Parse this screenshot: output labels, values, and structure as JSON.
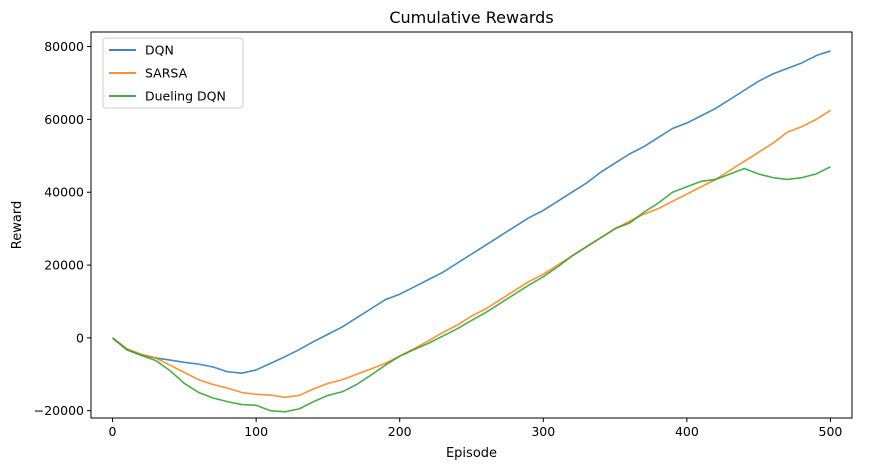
{
  "chart_data": {
    "type": "line",
    "title": "Cumulative Rewards",
    "xlabel": "Episode",
    "ylabel": "Reward",
    "xlim": [
      -15,
      515
    ],
    "ylim": [
      -22000,
      84000
    ],
    "xticks": [
      0,
      100,
      200,
      300,
      400,
      500
    ],
    "yticks": [
      -20000,
      0,
      20000,
      40000,
      60000,
      80000
    ],
    "grid": false,
    "legend_position": "top-left",
    "series": [
      {
        "name": "DQN",
        "color": "#1f77b4",
        "points": [
          [
            0,
            0
          ],
          [
            10,
            -3200
          ],
          [
            20,
            -4700
          ],
          [
            30,
            -5500
          ],
          [
            40,
            -6100
          ],
          [
            50,
            -6700
          ],
          [
            60,
            -7200
          ],
          [
            70,
            -8000
          ],
          [
            80,
            -9300
          ],
          [
            90,
            -9700
          ],
          [
            100,
            -8800
          ],
          [
            110,
            -7000
          ],
          [
            120,
            -5200
          ],
          [
            130,
            -3200
          ],
          [
            140,
            -1000
          ],
          [
            150,
            1000
          ],
          [
            160,
            3000
          ],
          [
            170,
            5500
          ],
          [
            180,
            8000
          ],
          [
            190,
            10500
          ],
          [
            200,
            12000
          ],
          [
            210,
            14000
          ],
          [
            220,
            16000
          ],
          [
            230,
            18000
          ],
          [
            240,
            20500
          ],
          [
            250,
            23000
          ],
          [
            260,
            25500
          ],
          [
            270,
            28000
          ],
          [
            280,
            30500
          ],
          [
            290,
            33000
          ],
          [
            300,
            35000
          ],
          [
            310,
            37500
          ],
          [
            320,
            40000
          ],
          [
            330,
            42500
          ],
          [
            340,
            45500
          ],
          [
            350,
            48000
          ],
          [
            360,
            50500
          ],
          [
            370,
            52500
          ],
          [
            380,
            55000
          ],
          [
            390,
            57500
          ],
          [
            400,
            59000
          ],
          [
            410,
            61000
          ],
          [
            420,
            63000
          ],
          [
            430,
            65500
          ],
          [
            440,
            68000
          ],
          [
            450,
            70500
          ],
          [
            460,
            72500
          ],
          [
            470,
            74000
          ],
          [
            480,
            75500
          ],
          [
            490,
            77500
          ],
          [
            500,
            78800
          ]
        ]
      },
      {
        "name": "SARSA",
        "color": "#ff7f0e",
        "points": [
          [
            0,
            0
          ],
          [
            10,
            -3000
          ],
          [
            20,
            -4500
          ],
          [
            30,
            -5500
          ],
          [
            40,
            -7500
          ],
          [
            50,
            -9500
          ],
          [
            60,
            -11500
          ],
          [
            70,
            -12800
          ],
          [
            80,
            -13800
          ],
          [
            90,
            -15000
          ],
          [
            100,
            -15500
          ],
          [
            110,
            -15700
          ],
          [
            120,
            -16300
          ],
          [
            130,
            -15800
          ],
          [
            140,
            -14000
          ],
          [
            150,
            -12500
          ],
          [
            160,
            -11500
          ],
          [
            170,
            -10000
          ],
          [
            180,
            -8500
          ],
          [
            190,
            -7000
          ],
          [
            200,
            -5000
          ],
          [
            210,
            -3000
          ],
          [
            220,
            -800
          ],
          [
            230,
            1500
          ],
          [
            240,
            3500
          ],
          [
            250,
            6000
          ],
          [
            260,
            8000
          ],
          [
            270,
            10500
          ],
          [
            280,
            13000
          ],
          [
            290,
            15500
          ],
          [
            300,
            17500
          ],
          [
            310,
            20000
          ],
          [
            320,
            22500
          ],
          [
            330,
            25000
          ],
          [
            340,
            27500
          ],
          [
            350,
            30000
          ],
          [
            360,
            32000
          ],
          [
            370,
            34000
          ],
          [
            380,
            35500
          ],
          [
            390,
            37500
          ],
          [
            400,
            39500
          ],
          [
            410,
            41500
          ],
          [
            420,
            43500
          ],
          [
            430,
            46000
          ],
          [
            440,
            48500
          ],
          [
            450,
            51000
          ],
          [
            460,
            53500
          ],
          [
            470,
            56500
          ],
          [
            480,
            58000
          ],
          [
            490,
            60000
          ],
          [
            500,
            62500
          ]
        ]
      },
      {
        "name": "Dueling DQN",
        "color": "#2ca02c",
        "points": [
          [
            0,
            0
          ],
          [
            10,
            -3300
          ],
          [
            20,
            -4800
          ],
          [
            30,
            -6200
          ],
          [
            40,
            -9000
          ],
          [
            50,
            -12500
          ],
          [
            60,
            -15000
          ],
          [
            70,
            -16500
          ],
          [
            80,
            -17500
          ],
          [
            90,
            -18300
          ],
          [
            100,
            -18500
          ],
          [
            110,
            -20000
          ],
          [
            120,
            -20300
          ],
          [
            130,
            -19500
          ],
          [
            140,
            -17500
          ],
          [
            150,
            -15800
          ],
          [
            160,
            -14800
          ],
          [
            170,
            -12800
          ],
          [
            180,
            -10200
          ],
          [
            190,
            -7500
          ],
          [
            200,
            -5000
          ],
          [
            210,
            -3200
          ],
          [
            220,
            -1500
          ],
          [
            230,
            500
          ],
          [
            240,
            2500
          ],
          [
            250,
            4800
          ],
          [
            260,
            7000
          ],
          [
            270,
            9500
          ],
          [
            280,
            12000
          ],
          [
            290,
            14500
          ],
          [
            300,
            16800
          ],
          [
            310,
            19500
          ],
          [
            320,
            22500
          ],
          [
            330,
            25000
          ],
          [
            340,
            27500
          ],
          [
            350,
            30000
          ],
          [
            360,
            31500
          ],
          [
            370,
            34500
          ],
          [
            380,
            37000
          ],
          [
            390,
            40000
          ],
          [
            400,
            41500
          ],
          [
            410,
            43000
          ],
          [
            420,
            43500
          ],
          [
            430,
            45000
          ],
          [
            440,
            46500
          ],
          [
            450,
            45000
          ],
          [
            460,
            44000
          ],
          [
            470,
            43500
          ],
          [
            480,
            44000
          ],
          [
            490,
            45000
          ],
          [
            500,
            47000
          ]
        ]
      }
    ]
  }
}
